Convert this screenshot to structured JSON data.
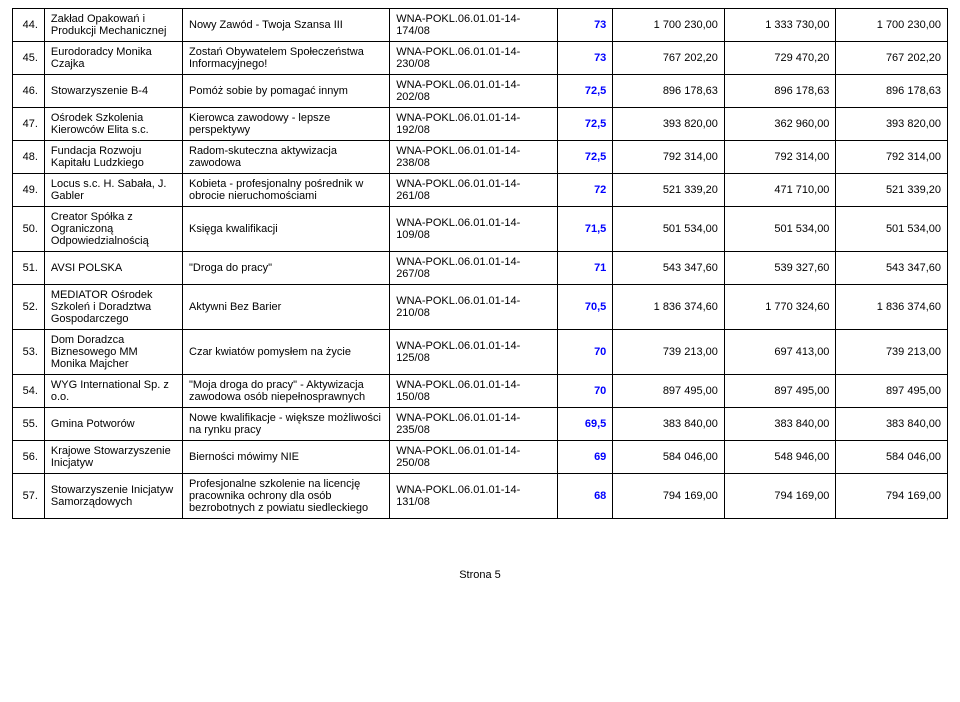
{
  "footer": "Strona 5",
  "columns": [
    "num",
    "name",
    "title",
    "code",
    "score",
    "m1",
    "m2",
    "m3"
  ],
  "colClasses": [
    "num",
    "name",
    "title",
    "code",
    "score",
    "money",
    "money",
    "money"
  ],
  "rows": [
    {
      "num": "44.",
      "name": "Zakład Opakowań i Produkcji Mechanicznej",
      "title": "Nowy Zawód - Twoja Szansa III",
      "code": "WNA-POKL.06.01.01-14-174/08",
      "score": "73",
      "m1": "1 700 230,00",
      "m2": "1 333 730,00",
      "m3": "1 700 230,00"
    },
    {
      "num": "45.",
      "name": "Eurodoradcy Monika Czajka",
      "title": "Zostań Obywatelem Społeczeństwa Informacyjnego!",
      "code": "WNA-POKL.06.01.01-14-230/08",
      "score": "73",
      "m1": "767 202,20",
      "m2": "729 470,20",
      "m3": "767 202,20"
    },
    {
      "num": "46.",
      "name": "Stowarzyszenie B-4",
      "title": "Pomóż sobie by pomagać innym",
      "code": "WNA-POKL.06.01.01-14-202/08",
      "score": "72,5",
      "m1": "896 178,63",
      "m2": "896 178,63",
      "m3": "896 178,63"
    },
    {
      "num": "47.",
      "name": "Ośrodek Szkolenia Kierowców Elita s.c.",
      "title": "Kierowca zawodowy - lepsze perspektywy",
      "code": "WNA-POKL.06.01.01-14-192/08",
      "score": "72,5",
      "m1": "393 820,00",
      "m2": "362 960,00",
      "m3": "393 820,00"
    },
    {
      "num": "48.",
      "name": "Fundacja Rozwoju Kapitału Ludzkiego",
      "title": "Radom-skuteczna aktywizacja zawodowa",
      "code": "WNA-POKL.06.01.01-14-238/08",
      "score": "72,5",
      "m1": "792 314,00",
      "m2": "792 314,00",
      "m3": "792 314,00"
    },
    {
      "num": "49.",
      "name": "Locus s.c. H. Sabała, J. Gabler",
      "title": "Kobieta - profesjonalny pośrednik w obrocie nieruchomościami",
      "code": "WNA-POKL.06.01.01-14-261/08",
      "score": "72",
      "m1": "521 339,20",
      "m2": "471 710,00",
      "m3": "521 339,20"
    },
    {
      "num": "50.",
      "name": "Creator Spółka z Ograniczoną Odpowiedzialnością",
      "title": "Księga kwalifikacji",
      "code": "WNA-POKL.06.01.01-14-109/08",
      "score": "71,5",
      "m1": "501 534,00",
      "m2": "501 534,00",
      "m3": "501 534,00"
    },
    {
      "num": "51.",
      "name": "AVSI POLSKA",
      "title": "\"Droga do pracy\"",
      "code": "WNA-POKL.06.01.01-14-267/08",
      "score": "71",
      "m1": "543 347,60",
      "m2": "539 327,60",
      "m3": "543 347,60"
    },
    {
      "num": "52.",
      "name": "MEDIATOR Ośrodek Szkoleń i Doradztwa Gospodarczego",
      "title": "Aktywni Bez Barier",
      "code": "WNA-POKL.06.01.01-14-210/08",
      "score": "70,5",
      "m1": "1 836 374,60",
      "m2": "1 770 324,60",
      "m3": "1 836 374,60"
    },
    {
      "num": "53.",
      "name": "Dom Doradzca Biznesowego MM Monika Majcher",
      "title": "Czar kwiatów pomysłem na życie",
      "code": "WNA-POKL.06.01.01-14-125/08",
      "score": "70",
      "m1": "739 213,00",
      "m2": "697 413,00",
      "m3": "739 213,00"
    },
    {
      "num": "54.",
      "name": "WYG International Sp. z o.o.",
      "title": "\"Moja droga do pracy\" - Aktywizacja zawodowa osób niepełnosprawnych",
      "code": "WNA-POKL.06.01.01-14-150/08",
      "score": "70",
      "m1": "897 495,00",
      "m2": "897 495,00",
      "m3": "897 495,00"
    },
    {
      "num": "55.",
      "name": "Gmina Potworów",
      "title": "Nowe kwalifikacje - większe możliwości na rynku pracy",
      "code": "WNA-POKL.06.01.01-14-235/08",
      "score": "69,5",
      "m1": "383 840,00",
      "m2": "383 840,00",
      "m3": "383 840,00"
    },
    {
      "num": "56.",
      "name": "Krajowe Stowarzyszenie Inicjatyw",
      "title": "Bierności mówimy NIE",
      "code": "WNA-POKL.06.01.01-14-250/08",
      "score": "69",
      "m1": "584 046,00",
      "m2": "548 946,00",
      "m3": "584 046,00"
    },
    {
      "num": "57.",
      "name": "Stowarzyszenie Inicjatyw Samorządowych",
      "title": "Profesjonalne szkolenie na licencję pracownika ochrony dla osób bezrobotnych z powiatu siedleckiego",
      "code": "WNA-POKL.06.01.01-14-131/08",
      "score": "68",
      "m1": "794 169,00",
      "m2": "794 169,00",
      "m3": "794 169,00"
    }
  ]
}
